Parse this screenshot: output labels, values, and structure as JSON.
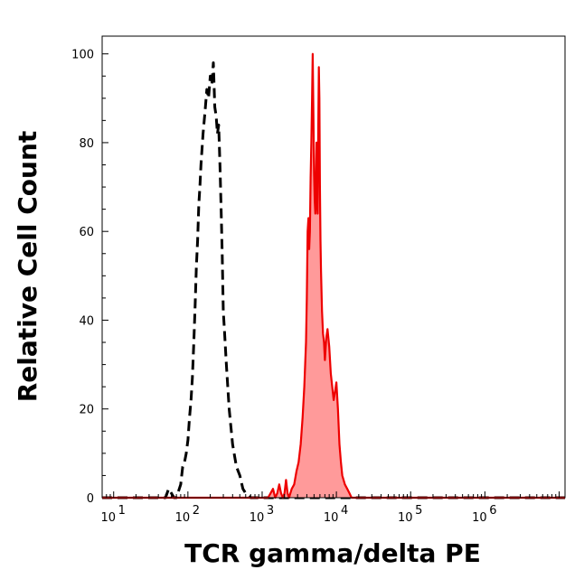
{
  "chart_data": {
    "type": "area",
    "xlabel": "TCR gamma/delta PE",
    "ylabel": "Relative Cell Count",
    "x_scale": "log",
    "xlim": [
      7,
      12000000
    ],
    "ylim": [
      0,
      104
    ],
    "x_ticks": [
      {
        "value": 10,
        "base": "10",
        "exp": "1"
      },
      {
        "value": 100,
        "base": "10",
        "exp": "2"
      },
      {
        "value": 1000,
        "base": "10",
        "exp": "3"
      },
      {
        "value": 10000,
        "base": "10",
        "exp": "4"
      },
      {
        "value": 100000,
        "base": "10",
        "exp": "5"
      },
      {
        "value": 1000000,
        "base": "10",
        "exp": "6"
      }
    ],
    "y_ticks": [
      0,
      20,
      40,
      60,
      80,
      100
    ],
    "grid": false,
    "series": [
      {
        "style": "dashed",
        "color": "#000000",
        "fill": "none",
        "points": [
          [
            7,
            0
          ],
          [
            50,
            0
          ],
          [
            55,
            2
          ],
          [
            60,
            1
          ],
          [
            65,
            0
          ],
          [
            70,
            0
          ],
          [
            80,
            3
          ],
          [
            85,
            7
          ],
          [
            90,
            8
          ],
          [
            95,
            10
          ],
          [
            100,
            13
          ],
          [
            105,
            18
          ],
          [
            110,
            22
          ],
          [
            115,
            27
          ],
          [
            120,
            35
          ],
          [
            125,
            43
          ],
          [
            130,
            52
          ],
          [
            135,
            58
          ],
          [
            140,
            66
          ],
          [
            145,
            70
          ],
          [
            150,
            75
          ],
          [
            160,
            82
          ],
          [
            170,
            87
          ],
          [
            180,
            92
          ],
          [
            190,
            90
          ],
          [
            200,
            95
          ],
          [
            210,
            93
          ],
          [
            220,
            98
          ],
          [
            230,
            88
          ],
          [
            240,
            86
          ],
          [
            250,
            82
          ],
          [
            260,
            84
          ],
          [
            270,
            75
          ],
          [
            280,
            65
          ],
          [
            290,
            55
          ],
          [
            300,
            42
          ],
          [
            310,
            38
          ],
          [
            330,
            30
          ],
          [
            360,
            20
          ],
          [
            400,
            12
          ],
          [
            450,
            7
          ],
          [
            500,
            5
          ],
          [
            550,
            2
          ],
          [
            600,
            1
          ],
          [
            700,
            0
          ],
          [
            12000000,
            0
          ]
        ]
      },
      {
        "style": "solid",
        "color": "#ee0000",
        "fill": "#ff9a9a",
        "points": [
          [
            7,
            0
          ],
          [
            1200,
            0
          ],
          [
            1300,
            1
          ],
          [
            1400,
            2
          ],
          [
            1500,
            0
          ],
          [
            1600,
            1
          ],
          [
            1700,
            3
          ],
          [
            1800,
            1
          ],
          [
            1900,
            0
          ],
          [
            2000,
            1
          ],
          [
            2100,
            4
          ],
          [
            2200,
            1
          ],
          [
            2300,
            0
          ],
          [
            2500,
            2
          ],
          [
            2700,
            3
          ],
          [
            2900,
            6
          ],
          [
            3100,
            8
          ],
          [
            3300,
            12
          ],
          [
            3500,
            18
          ],
          [
            3700,
            25
          ],
          [
            3900,
            35
          ],
          [
            4000,
            45
          ],
          [
            4100,
            60
          ],
          [
            4200,
            63
          ],
          [
            4300,
            56
          ],
          [
            4400,
            60
          ],
          [
            4500,
            72
          ],
          [
            4600,
            80
          ],
          [
            4700,
            90
          ],
          [
            4800,
            100
          ],
          [
            4900,
            86
          ],
          [
            5000,
            73
          ],
          [
            5100,
            67
          ],
          [
            5200,
            64
          ],
          [
            5300,
            72
          ],
          [
            5400,
            80
          ],
          [
            5500,
            66
          ],
          [
            5600,
            64
          ],
          [
            5700,
            84
          ],
          [
            5800,
            97
          ],
          [
            5900,
            90
          ],
          [
            6000,
            70
          ],
          [
            6100,
            58
          ],
          [
            6200,
            51
          ],
          [
            6400,
            42
          ],
          [
            6600,
            37
          ],
          [
            6800,
            35
          ],
          [
            7000,
            31
          ],
          [
            7300,
            36
          ],
          [
            7600,
            38
          ],
          [
            8000,
            34
          ],
          [
            8400,
            28
          ],
          [
            8800,
            25
          ],
          [
            9200,
            22
          ],
          [
            9600,
            24
          ],
          [
            10000,
            26
          ],
          [
            10500,
            20
          ],
          [
            11000,
            12
          ],
          [
            11500,
            8
          ],
          [
            12000,
            5
          ],
          [
            13000,
            3
          ],
          [
            14000,
            2
          ],
          [
            15000,
            1
          ],
          [
            16000,
            0
          ],
          [
            12000000,
            0
          ]
        ]
      }
    ]
  }
}
